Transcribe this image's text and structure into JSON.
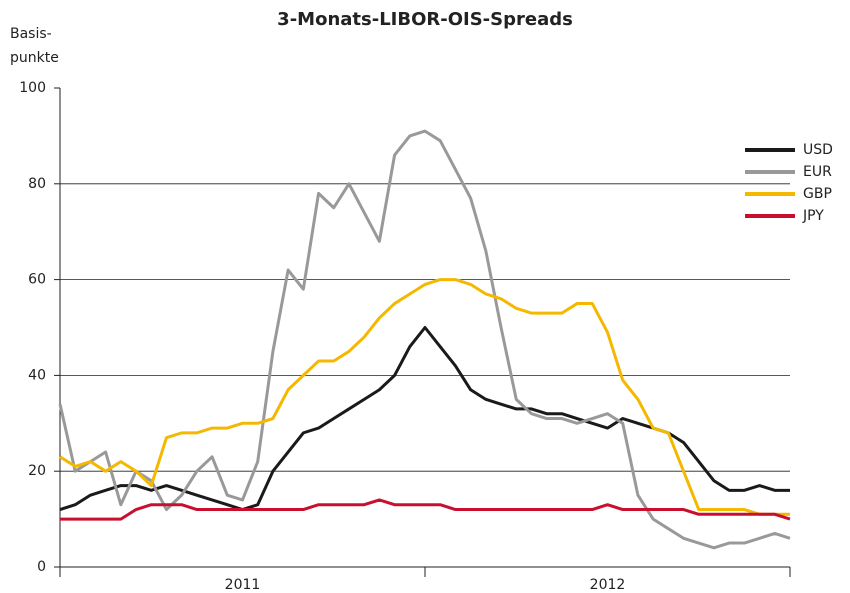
{
  "chart_data": {
    "type": "line",
    "title": "3-Monats-LIBOR-OIS-Spreads",
    "ylabel": [
      "Basis-",
      "punkte"
    ],
    "categories": [
      null,
      null,
      null,
      null,
      null,
      null,
      null,
      null,
      null,
      null,
      null,
      null,
      "2011",
      null,
      null,
      null,
      null,
      null,
      null,
      null,
      null,
      null,
      null,
      null,
      null,
      null,
      null,
      null,
      null,
      null,
      null,
      null,
      null,
      null,
      null,
      null,
      "2012",
      null,
      null,
      null,
      null,
      null,
      null,
      null,
      null,
      null,
      null,
      null,
      null
    ],
    "xticks": [
      0,
      24,
      48
    ],
    "ylim": [
      0,
      100
    ],
    "yticks": [
      0,
      20,
      40,
      60,
      80,
      100
    ],
    "grid": true,
    "legend": "right",
    "series": [
      {
        "name": "USD",
        "color": "#1a1a1a",
        "values": [
          12,
          13,
          15,
          16,
          17,
          17,
          16,
          17,
          16,
          15,
          14,
          13,
          12,
          13,
          20,
          24,
          28,
          29,
          31,
          33,
          35,
          37,
          40,
          46,
          50,
          46,
          42,
          37,
          35,
          34,
          33,
          33,
          32,
          32,
          31,
          30,
          29,
          31,
          30,
          29,
          28,
          26,
          22,
          18,
          16,
          16,
          17,
          16,
          16
        ]
      },
      {
        "name": "EUR",
        "color": "#999999",
        "values": [
          34,
          20,
          22,
          24,
          13,
          20,
          18,
          12,
          15,
          20,
          23,
          15,
          14,
          22,
          45,
          62,
          58,
          78,
          75,
          80,
          74,
          68,
          86,
          90,
          91,
          89,
          83,
          77,
          66,
          50,
          35,
          32,
          31,
          31,
          30,
          31,
          32,
          30,
          15,
          10,
          8,
          6,
          5,
          4,
          5,
          5,
          6,
          7,
          6
        ]
      },
      {
        "name": "GBP",
        "color": "#f5b800",
        "values": [
          23,
          21,
          22,
          20,
          22,
          20,
          17,
          27,
          28,
          28,
          29,
          29,
          30,
          30,
          31,
          37,
          40,
          43,
          43,
          45,
          48,
          52,
          55,
          57,
          59,
          60,
          60,
          59,
          57,
          56,
          54,
          53,
          53,
          53,
          55,
          55,
          49,
          39,
          35,
          29,
          28,
          20,
          12,
          12,
          12,
          12,
          11,
          11,
          11
        ]
      },
      {
        "name": "JPY",
        "color": "#c8102e",
        "values": [
          10,
          10,
          10,
          10,
          10,
          12,
          13,
          13,
          13,
          12,
          12,
          12,
          12,
          12,
          12,
          12,
          12,
          13,
          13,
          13,
          13,
          14,
          13,
          13,
          13,
          13,
          12,
          12,
          12,
          12,
          12,
          12,
          12,
          12,
          12,
          12,
          13,
          12,
          12,
          12,
          12,
          12,
          11,
          11,
          11,
          11,
          11,
          11,
          10
        ]
      }
    ]
  }
}
